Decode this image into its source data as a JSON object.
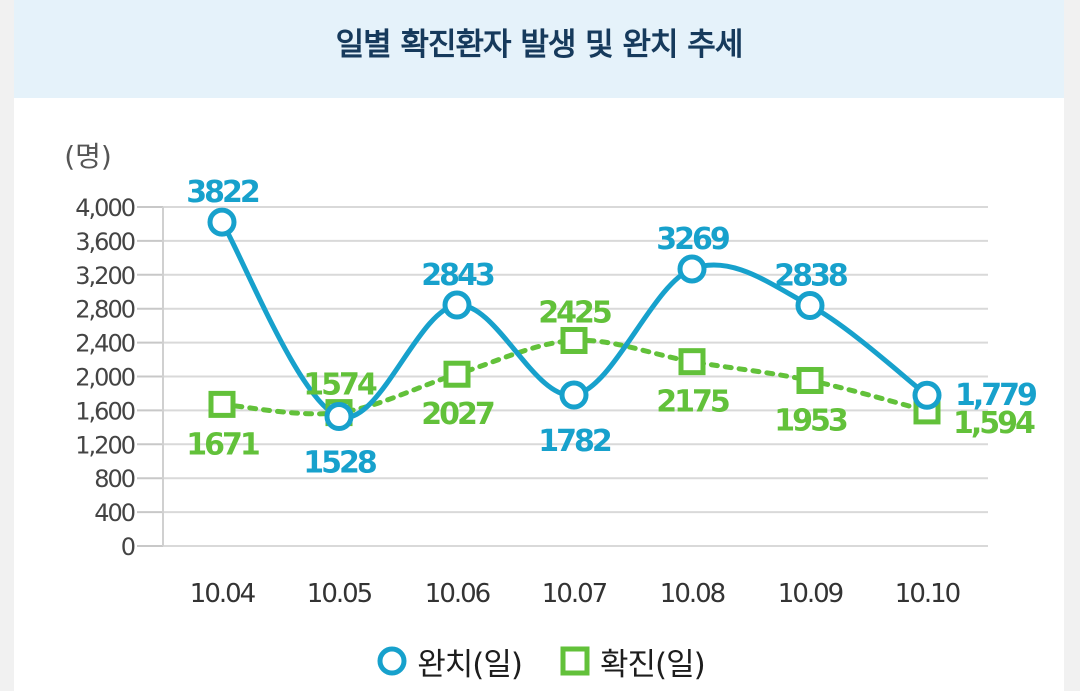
{
  "title": "일별 확진환자 발생 및 완치 추세",
  "chart_data": {
    "type": "line",
    "unit_label": "(명)",
    "categories": [
      "10.04",
      "10.05",
      "10.06",
      "10.07",
      "10.08",
      "10.09",
      "10.10"
    ],
    "ylim": [
      0,
      4000
    ],
    "yticks": [
      "0",
      "400",
      "800",
      "1,200",
      "1,600",
      "2,000",
      "2,400",
      "2,800",
      "3,200",
      "3,600",
      "4,000"
    ],
    "grid": true,
    "legend_position": "bottom",
    "series": [
      {
        "name": "완치(일)",
        "values": [
          3822,
          1528,
          2843,
          1782,
          3269,
          2838,
          1779
        ],
        "labels": [
          "3822",
          "1528",
          "2843",
          "1782",
          "3269",
          "2838",
          "1,779"
        ],
        "color": "#17a1cc",
        "marker": "circle",
        "style": "solid"
      },
      {
        "name": "확진(일)",
        "values": [
          1671,
          1574,
          2027,
          2425,
          2175,
          1953,
          1594
        ],
        "labels": [
          "1671",
          "1574",
          "2027",
          "2425",
          "2175",
          "1953",
          "1,594"
        ],
        "color": "#62c13a",
        "marker": "square",
        "style": "dotted"
      }
    ]
  },
  "legend": {
    "items": [
      {
        "label": "완치(일)",
        "icon": "circle-marker-icon",
        "color": "#17a1cc"
      },
      {
        "label": "확진(일)",
        "icon": "square-marker-icon",
        "color": "#62c13a"
      }
    ]
  }
}
